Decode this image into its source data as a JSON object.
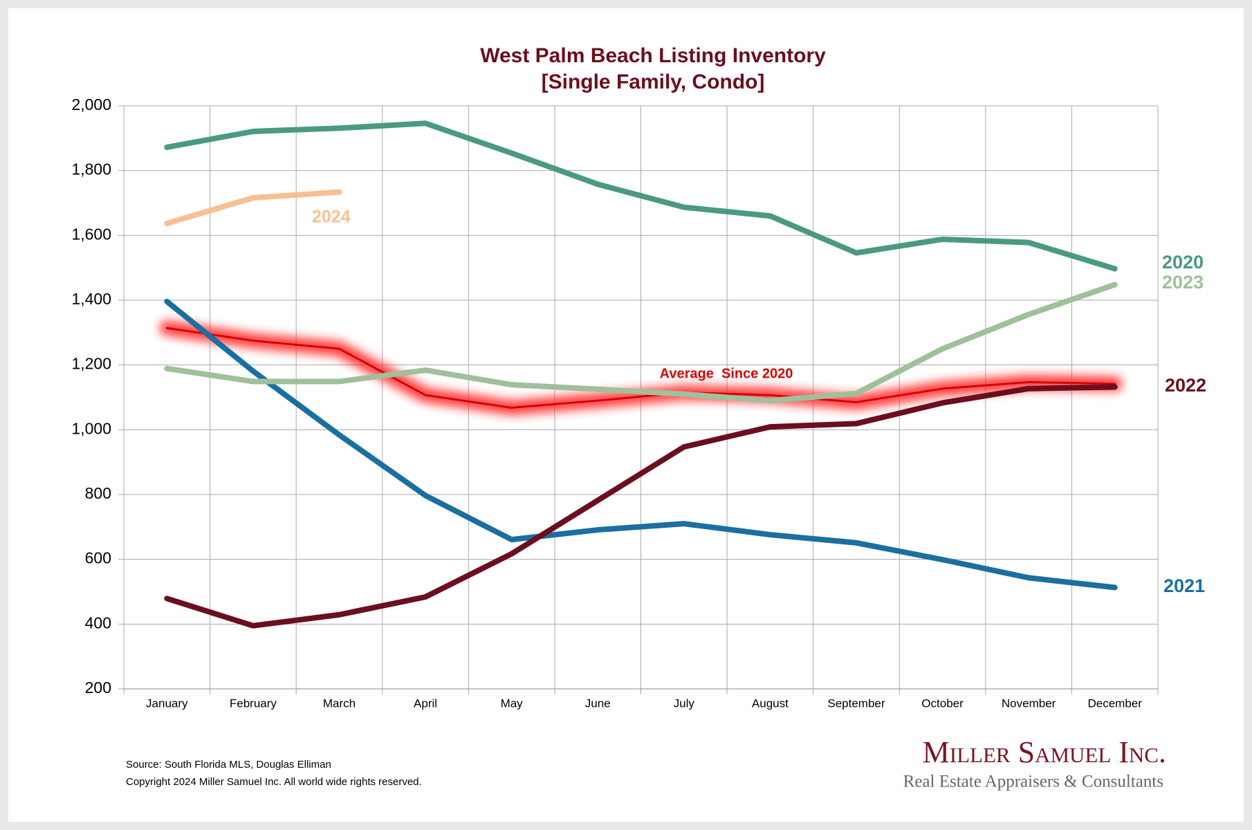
{
  "chart_data": {
    "type": "line",
    "title": "West Palm Beach Listing Inventory",
    "subtitle": "[Single Family, Condo]",
    "categories": [
      "January",
      "February",
      "March",
      "April",
      "May",
      "June",
      "July",
      "August",
      "September",
      "October",
      "November",
      "December"
    ],
    "series": [
      {
        "name": "2020",
        "color": "#4a9a80",
        "values": [
          1872,
          1921,
          1931,
          1946,
          1854,
          1758,
          1687,
          1660,
          1546,
          1588,
          1578,
          1497
        ]
      },
      {
        "name": "2021",
        "color": "#1a6fa0",
        "values": [
          1396,
          1181,
          984,
          797,
          661,
          691,
          710,
          676,
          651,
          599,
          543,
          513
        ]
      },
      {
        "name": "2022",
        "color": "#6b0e1e",
        "values": [
          479,
          395,
          429,
          484,
          617,
          782,
          947,
          1009,
          1019,
          1083,
          1127,
          1132
        ]
      },
      {
        "name": "2023",
        "color": "#9fc09a",
        "values": [
          1189,
          1149,
          1149,
          1184,
          1139,
          1125,
          1110,
          1090,
          1112,
          1250,
          1356,
          1448
        ]
      },
      {
        "name": "2024",
        "color": "#f8c090",
        "values": [
          1637,
          1716,
          1734,
          null,
          null,
          null,
          null,
          null,
          null,
          null,
          null,
          null
        ]
      },
      {
        "name": "Average  Since 2020",
        "color": "#d80000",
        "values": [
          1314,
          1275,
          1250,
          1107,
          1068,
          1090,
          1115,
          1107,
          1085,
          1127,
          1147,
          1142
        ]
      }
    ],
    "ylim": [
      200,
      2000
    ],
    "yticks": [
      200,
      400,
      600,
      800,
      {
        "value": 1000,
        "label": "1,000"
      },
      {
        "value": 1200,
        "label": "1,200"
      },
      {
        "value": 1400,
        "label": "1,400"
      },
      {
        "value": 1600,
        "label": "1,600"
      },
      {
        "value": 1800,
        "label": "1,800"
      },
      {
        "value": 2000,
        "label": "2,000"
      }
    ],
    "grid": true,
    "source": "Source: South Florida MLS, Douglas Elliman",
    "copyright": "Copyright 2024 Miller Samuel Inc.  All world wide rights reserved.",
    "logo_name": "Miller Samuel Inc.",
    "logo_tagline": "Real Estate Appraisers & Consultants"
  }
}
